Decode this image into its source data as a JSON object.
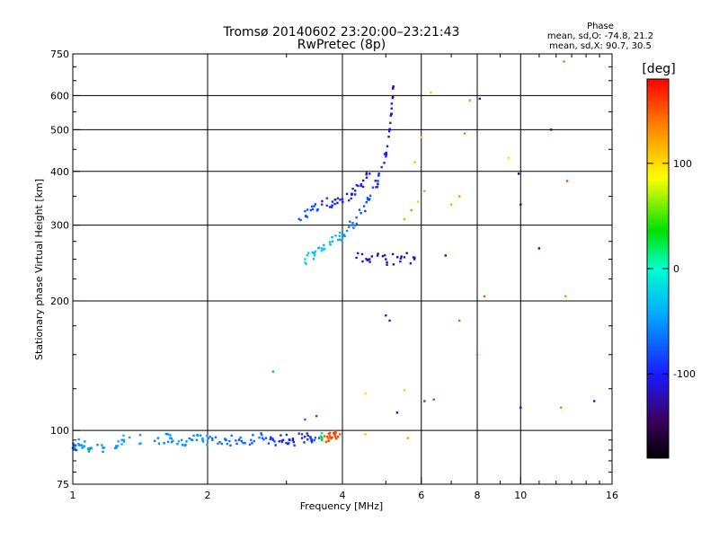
{
  "chart_data": {
    "type": "scatter",
    "title": "Tromsø 20140602 23:20:00–23:21:43",
    "subtitle": "RwPretec (8p)",
    "xlabel": "Frequency [MHz]",
    "ylabel": "Stationary phase Virtual Height [km]",
    "x_scale": "log2",
    "y_scale": "log",
    "xlim": [
      1,
      16
    ],
    "ylim": [
      75,
      750
    ],
    "x_ticks": [
      "1",
      "2",
      "4",
      "6",
      "8",
      "10",
      "16"
    ],
    "y_ticks": [
      "75",
      "100",
      "200",
      "300",
      "400",
      "500",
      "600",
      "750"
    ],
    "grid": true,
    "stats": {
      "title": "Phase",
      "line_o": "mean, sd,O: -74.8, 21.2",
      "line_x": "mean, sd,X:  90.7, 30.5"
    },
    "colorbar": {
      "label": "[deg]",
      "range": [
        -180,
        180
      ],
      "ticks": [
        "100",
        "0",
        "-100"
      ],
      "colormap": "rainbow"
    },
    "trace_points": [
      {
        "f": 1.0,
        "h": 91,
        "phase": -75
      },
      {
        "f": 1.03,
        "h": 93,
        "phase": -55
      },
      {
        "f": 1.06,
        "h": 92,
        "phase": -45
      },
      {
        "f": 1.1,
        "h": 91,
        "phase": -50
      },
      {
        "f": 1.25,
        "h": 92,
        "phase": -50
      },
      {
        "f": 1.3,
        "h": 95,
        "phase": -45
      },
      {
        "f": 1.55,
        "h": 96,
        "phase": -55
      },
      {
        "f": 1.65,
        "h": 96,
        "phase": -50
      },
      {
        "f": 1.75,
        "h": 95,
        "phase": -55
      },
      {
        "f": 1.85,
        "h": 95,
        "phase": -60
      },
      {
        "f": 1.95,
        "h": 95,
        "phase": -55
      },
      {
        "f": 2.05,
        "h": 95,
        "phase": -60
      },
      {
        "f": 2.2,
        "h": 95,
        "phase": -65
      },
      {
        "f": 2.35,
        "h": 95,
        "phase": -70
      },
      {
        "f": 2.5,
        "h": 95,
        "phase": -70
      },
      {
        "f": 2.65,
        "h": 96,
        "phase": -75
      },
      {
        "f": 2.8,
        "h": 95,
        "phase": -90
      },
      {
        "f": 2.95,
        "h": 95,
        "phase": -95
      },
      {
        "f": 3.1,
        "h": 95,
        "phase": -100
      },
      {
        "f": 3.25,
        "h": 96,
        "phase": -95
      },
      {
        "f": 3.4,
        "h": 96,
        "phase": -85
      },
      {
        "f": 3.55,
        "h": 96,
        "phase": -80
      },
      {
        "f": 3.65,
        "h": 97,
        "phase": 150
      },
      {
        "f": 3.75,
        "h": 97,
        "phase": 160
      },
      {
        "f": 3.85,
        "h": 97,
        "phase": 155
      },
      {
        "f": 3.95,
        "h": 98,
        "phase": 150
      },
      {
        "f": 3.3,
        "h": 106,
        "phase": -70
      },
      {
        "f": 3.5,
        "h": 108,
        "phase": -80
      },
      {
        "f": 2.8,
        "h": 137,
        "phase": -40
      },
      {
        "f": 3.3,
        "h": 250,
        "phase": -20
      },
      {
        "f": 3.45,
        "h": 258,
        "phase": -25
      },
      {
        "f": 3.6,
        "h": 265,
        "phase": -30
      },
      {
        "f": 3.8,
        "h": 275,
        "phase": -40
      },
      {
        "f": 4.0,
        "h": 285,
        "phase": -45
      },
      {
        "f": 4.2,
        "h": 300,
        "phase": -60
      },
      {
        "f": 4.4,
        "h": 320,
        "phase": -80
      },
      {
        "f": 4.6,
        "h": 345,
        "phase": -85
      },
      {
        "f": 4.8,
        "h": 380,
        "phase": -95
      },
      {
        "f": 5.0,
        "h": 440,
        "phase": -100
      },
      {
        "f": 5.1,
        "h": 500,
        "phase": -105
      },
      {
        "f": 5.15,
        "h": 560,
        "phase": -110
      },
      {
        "f": 5.2,
        "h": 630,
        "phase": -120
      },
      {
        "f": 3.2,
        "h": 310,
        "phase": -75
      },
      {
        "f": 3.4,
        "h": 325,
        "phase": -80
      },
      {
        "f": 3.6,
        "h": 335,
        "phase": -90
      },
      {
        "f": 3.8,
        "h": 340,
        "phase": -95
      },
      {
        "f": 4.0,
        "h": 345,
        "phase": -100
      },
      {
        "f": 4.2,
        "h": 355,
        "phase": -100
      },
      {
        "f": 4.4,
        "h": 370,
        "phase": -105
      },
      {
        "f": 4.6,
        "h": 395,
        "phase": -110
      },
      {
        "f": 4.3,
        "h": 252,
        "phase": -115
      },
      {
        "f": 4.6,
        "h": 250,
        "phase": -120
      },
      {
        "f": 5.0,
        "h": 250,
        "phase": -125
      },
      {
        "f": 5.4,
        "h": 251,
        "phase": -120
      },
      {
        "f": 5.8,
        "h": 252,
        "phase": -125
      },
      {
        "f": 5.0,
        "h": 185,
        "phase": -110
      },
      {
        "f": 5.1,
        "h": 180,
        "phase": -115
      },
      {
        "f": 5.5,
        "h": 310,
        "phase": 60
      },
      {
        "f": 5.7,
        "h": 325,
        "phase": 50
      },
      {
        "f": 5.9,
        "h": 340,
        "phase": 70
      },
      {
        "f": 6.1,
        "h": 360,
        "phase": 55
      },
      {
        "f": 5.8,
        "h": 420,
        "phase": 110
      },
      {
        "f": 6.0,
        "h": 480,
        "phase": 105
      },
      {
        "f": 4.5,
        "h": 122,
        "phase": 80
      },
      {
        "f": 5.5,
        "h": 124,
        "phase": 70
      },
      {
        "f": 4.5,
        "h": 98,
        "phase": 110
      },
      {
        "f": 5.6,
        "h": 96,
        "phase": 120
      },
      {
        "f": 5.3,
        "h": 110,
        "phase": -120
      },
      {
        "f": 6.3,
        "h": 610,
        "phase": 110
      },
      {
        "f": 7.7,
        "h": 585,
        "phase": 130
      },
      {
        "f": 7.5,
        "h": 490,
        "phase": 140
      },
      {
        "f": 7.0,
        "h": 335,
        "phase": 120
      },
      {
        "f": 7.3,
        "h": 350,
        "phase": 130
      },
      {
        "f": 6.8,
        "h": 255,
        "phase": -120
      },
      {
        "f": 7.3,
        "h": 180,
        "phase": 150
      },
      {
        "f": 8.0,
        "h": 150,
        "phase": 155
      },
      {
        "f": 8.1,
        "h": 590,
        "phase": -125
      },
      {
        "f": 8.3,
        "h": 205,
        "phase": 150
      },
      {
        "f": 9.4,
        "h": 430,
        "phase": 100
      },
      {
        "f": 9.9,
        "h": 395,
        "phase": -150
      },
      {
        "f": 10.0,
        "h": 335,
        "phase": -130
      },
      {
        "f": 11.0,
        "h": 265,
        "phase": -125
      },
      {
        "f": 11.7,
        "h": 500,
        "phase": -130
      },
      {
        "f": 12.5,
        "h": 720,
        "phase": 140
      },
      {
        "f": 12.6,
        "h": 205,
        "phase": 130
      },
      {
        "f": 12.7,
        "h": 380,
        "phase": 155
      },
      {
        "f": 10.0,
        "h": 113,
        "phase": -110
      },
      {
        "f": 12.3,
        "h": 113,
        "phase": 135
      },
      {
        "f": 14.6,
        "h": 117,
        "phase": -110
      },
      {
        "f": 6.1,
        "h": 117,
        "phase": -80
      },
      {
        "f": 6.4,
        "h": 118,
        "phase": -60
      }
    ]
  }
}
